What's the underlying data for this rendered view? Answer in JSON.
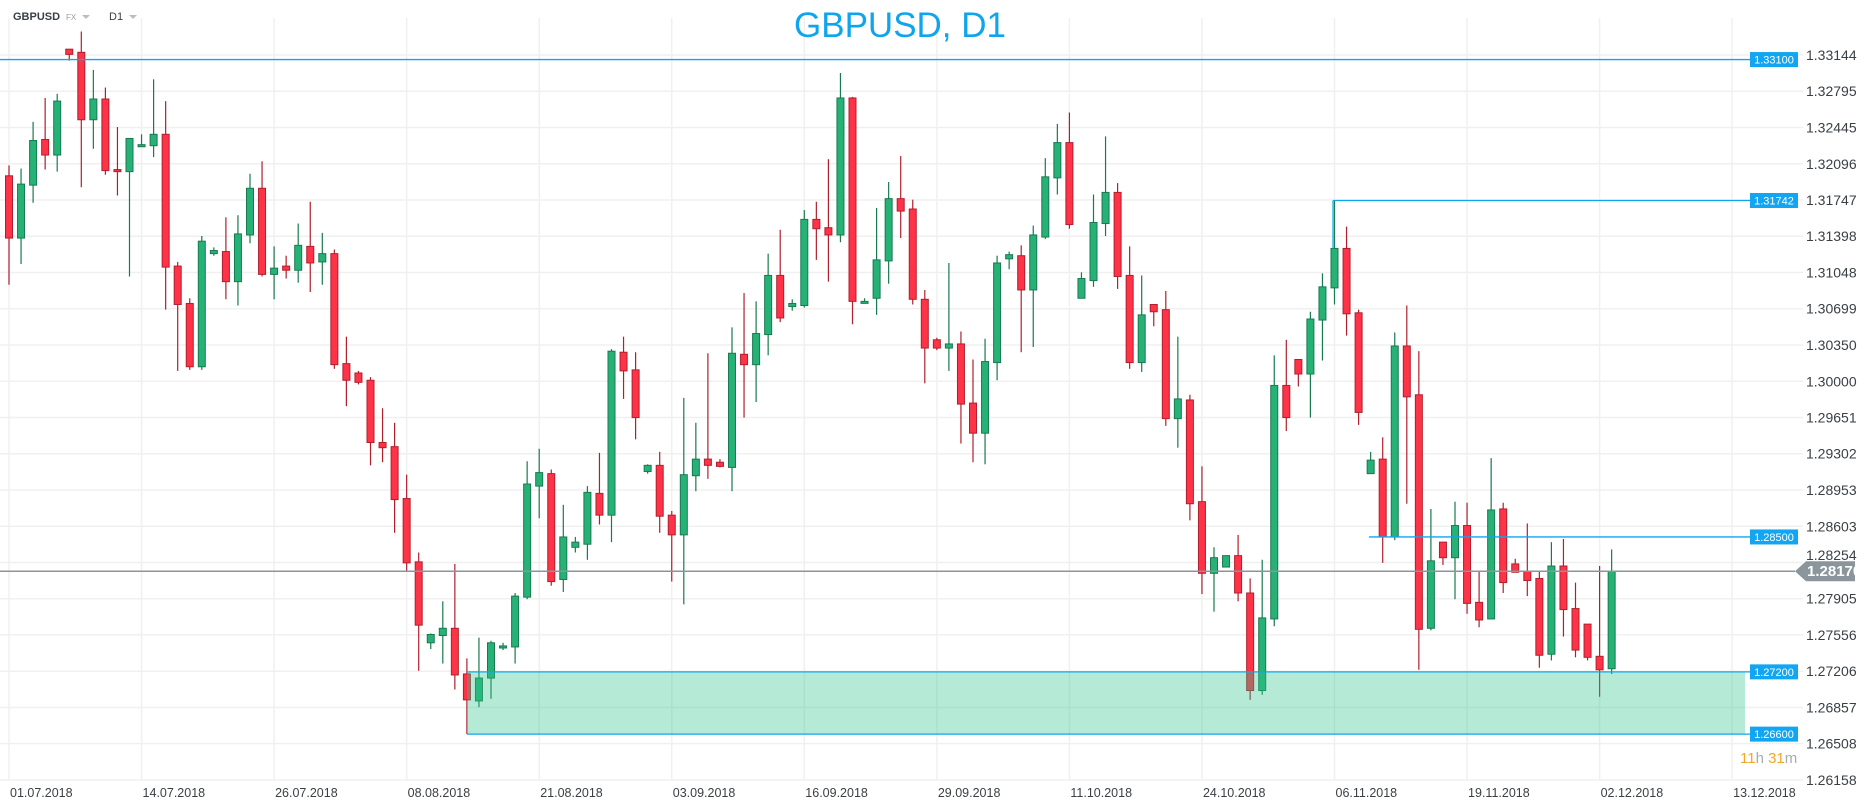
{
  "header": {
    "symbol": "GBPUSD",
    "market": "FX",
    "timeframe": "D1"
  },
  "countdown": {
    "hours": "11",
    "hours_unit": "h",
    "minutes": "31",
    "minutes_unit": "m"
  },
  "colors": {
    "up": "#26b276",
    "up_border": "#187a50",
    "down": "#ff3347",
    "down_border": "#b11f2d",
    "level": "#0ea5ee",
    "zone": "#b4ead8",
    "current": "#8a969c",
    "grid": "#f0f0f0"
  },
  "chart_data": {
    "type": "candlestick",
    "title": "GBPUSD, D1",
    "ylim": [
      1.26158,
      1.33144
    ],
    "grid": true,
    "price_ticks": [
      "1.33144",
      "1.32795",
      "1.32445",
      "1.32096",
      "1.31747",
      "1.31398",
      "1.31048",
      "1.30699",
      "1.30350",
      "1.30000",
      "1.29651",
      "1.29302",
      "1.28953",
      "1.28603",
      "1.28254",
      "1.27905",
      "1.27556",
      "1.27206",
      "1.26857",
      "1.26508",
      "1.26158"
    ],
    "date_ticks": [
      "01.07.2018",
      "14.07.2018",
      "26.07.2018",
      "08.08.2018",
      "21.08.2018",
      "03.09.2018",
      "16.09.2018",
      "29.09.2018",
      "11.10.2018",
      "24.10.2018",
      "06.11.2018",
      "19.11.2018",
      "02.12.2018",
      "13.12.2018"
    ],
    "levels": [
      {
        "price": 1.331,
        "label": "1.33100"
      },
      {
        "price": 1.31742,
        "label": "1.31742"
      },
      {
        "price": 1.285,
        "label": "1.28500"
      },
      {
        "price": 1.272,
        "label": "1.27200"
      },
      {
        "price": 1.266,
        "label": "1.26600"
      }
    ],
    "zone": {
      "from": 1.266,
      "to": 1.272
    },
    "current_price": {
      "price": 1.2817,
      "label": "1.28170"
    },
    "candle_fields": [
      "open",
      "high",
      "low",
      "close"
    ],
    "candles": [
      [
        1.3198,
        1.3208,
        1.3093,
        1.3138
      ],
      [
        1.3138,
        1.3205,
        1.3113,
        1.319
      ],
      [
        1.3189,
        1.325,
        1.3172,
        1.3232
      ],
      [
        1.3233,
        1.3273,
        1.3204,
        1.3218
      ],
      [
        1.3218,
        1.3277,
        1.3202,
        1.327
      ],
      [
        1.332,
        1.332,
        1.3309,
        1.3315
      ],
      [
        1.3317,
        1.3337,
        1.3187,
        1.3252
      ],
      [
        1.3252,
        1.33,
        1.3224,
        1.3272
      ],
      [
        1.3272,
        1.3283,
        1.3199,
        1.3203
      ],
      [
        1.3204,
        1.3245,
        1.3179,
        1.3202
      ],
      [
        1.3202,
        1.3234,
        1.3101,
        1.3234
      ],
      [
        1.3226,
        1.3238,
        1.3226,
        1.3228
      ],
      [
        1.3227,
        1.3291,
        1.3216,
        1.3238
      ],
      [
        1.3238,
        1.327,
        1.3069,
        1.311
      ],
      [
        1.3111,
        1.3115,
        1.301,
        1.3074
      ],
      [
        1.3075,
        1.308,
        1.3011,
        1.3014
      ],
      [
        1.3014,
        1.314,
        1.3011,
        1.3135
      ],
      [
        1.3123,
        1.3129,
        1.3121,
        1.3126
      ],
      [
        1.3125,
        1.3158,
        1.3079,
        1.3096
      ],
      [
        1.3096,
        1.316,
        1.3073,
        1.3142
      ],
      [
        1.3141,
        1.32,
        1.3133,
        1.3186
      ],
      [
        1.3186,
        1.3212,
        1.3101,
        1.3103
      ],
      [
        1.3103,
        1.313,
        1.3079,
        1.3109
      ],
      [
        1.3111,
        1.3121,
        1.3099,
        1.3107
      ],
      [
        1.3107,
        1.3152,
        1.3095,
        1.3131
      ],
      [
        1.313,
        1.3173,
        1.3086,
        1.3114
      ],
      [
        1.3115,
        1.3143,
        1.3093,
        1.3123
      ],
      [
        1.3123,
        1.3127,
        1.3012,
        1.3016
      ],
      [
        1.3017,
        1.3043,
        1.2976,
        1.3001
      ],
      [
        1.3008,
        1.301,
        1.2997,
        1.2999
      ],
      [
        1.3001,
        1.3004,
        1.2919,
        1.2941
      ],
      [
        1.2941,
        1.2974,
        1.2922,
        1.2936
      ],
      [
        1.2937,
        1.296,
        1.2854,
        1.2886
      ],
      [
        1.2887,
        1.291,
        1.2817,
        1.2825
      ],
      [
        1.2826,
        1.2835,
        1.2721,
        1.2765
      ],
      [
        1.2748,
        1.2757,
        1.2742,
        1.2756
      ],
      [
        1.2755,
        1.2788,
        1.2728,
        1.2762
      ],
      [
        1.2762,
        1.2824,
        1.2703,
        1.2717
      ],
      [
        1.2718,
        1.2733,
        1.266,
        1.2693
      ],
      [
        1.2692,
        1.2753,
        1.2686,
        1.2714
      ],
      [
        1.2714,
        1.275,
        1.2694,
        1.2748
      ],
      [
        1.2743,
        1.2748,
        1.2741,
        1.2745
      ],
      [
        1.2744,
        1.2796,
        1.2728,
        1.2793
      ],
      [
        1.2792,
        1.2923,
        1.279,
        1.2901
      ],
      [
        1.2899,
        1.2935,
        1.2868,
        1.2912
      ],
      [
        1.2911,
        1.2915,
        1.2803,
        1.2807
      ],
      [
        1.2809,
        1.2881,
        1.2797,
        1.285
      ],
      [
        1.284,
        1.285,
        1.2835,
        1.2845
      ],
      [
        1.2843,
        1.2899,
        1.2828,
        1.2893
      ],
      [
        1.2892,
        1.2931,
        1.2862,
        1.2871
      ],
      [
        1.2871,
        1.3031,
        1.2845,
        1.3029
      ],
      [
        1.3028,
        1.3043,
        1.2983,
        1.301
      ],
      [
        1.3011,
        1.3028,
        1.2944,
        1.2965
      ],
      [
        1.2913,
        1.292,
        1.2911,
        1.2919
      ],
      [
        1.2919,
        1.2932,
        1.2854,
        1.287
      ],
      [
        1.2871,
        1.2875,
        1.2807,
        1.2852
      ],
      [
        1.2852,
        1.2984,
        1.2785,
        1.291
      ],
      [
        1.2909,
        1.296,
        1.2894,
        1.2925
      ],
      [
        1.2925,
        1.3027,
        1.2906,
        1.2919
      ],
      [
        1.2922,
        1.2925,
        1.2917,
        1.2918
      ],
      [
        1.2917,
        1.3052,
        1.2894,
        1.3027
      ],
      [
        1.3026,
        1.3085,
        1.2965,
        1.3016
      ],
      [
        1.3016,
        1.3077,
        1.298,
        1.3046
      ],
      [
        1.3045,
        1.3123,
        1.3025,
        1.3102
      ],
      [
        1.3102,
        1.3146,
        1.3057,
        1.3061
      ],
      [
        1.3072,
        1.3079,
        1.3068,
        1.3075
      ],
      [
        1.3073,
        1.3165,
        1.3071,
        1.3156
      ],
      [
        1.3156,
        1.3173,
        1.3117,
        1.3147
      ],
      [
        1.3148,
        1.3214,
        1.3096,
        1.3141
      ],
      [
        1.3141,
        1.3297,
        1.3134,
        1.3273
      ],
      [
        1.3273,
        1.3274,
        1.3055,
        1.3077
      ],
      [
        1.3076,
        1.308,
        1.3075,
        1.3077
      ],
      [
        1.308,
        1.3167,
        1.3064,
        1.3117
      ],
      [
        1.3116,
        1.3192,
        1.3094,
        1.3176
      ],
      [
        1.3176,
        1.3217,
        1.3138,
        1.3164
      ],
      [
        1.3166,
        1.3175,
        1.3074,
        1.3079
      ],
      [
        1.3079,
        1.3088,
        1.2998,
        1.3032
      ],
      [
        1.304,
        1.3042,
        1.303,
        1.3032
      ],
      [
        1.3032,
        1.3114,
        1.301,
        1.3036
      ],
      [
        1.3036,
        1.3048,
        1.294,
        1.2978
      ],
      [
        1.2979,
        1.3021,
        1.2922,
        1.295
      ],
      [
        1.295,
        1.3041,
        1.292,
        1.3019
      ],
      [
        1.3018,
        1.3121,
        1.3001,
        1.3114
      ],
      [
        1.3118,
        1.3125,
        1.3108,
        1.3122
      ],
      [
        1.3121,
        1.3131,
        1.3028,
        1.3088
      ],
      [
        1.3088,
        1.315,
        1.3033,
        1.3141
      ],
      [
        1.3139,
        1.3215,
        1.3137,
        1.3197
      ],
      [
        1.3196,
        1.3248,
        1.318,
        1.323
      ],
      [
        1.323,
        1.3259,
        1.3147,
        1.3151
      ],
      [
        1.308,
        1.3105,
        1.308,
        1.3099
      ],
      [
        1.3097,
        1.318,
        1.3091,
        1.3153
      ],
      [
        1.3152,
        1.3236,
        1.314,
        1.3182
      ],
      [
        1.3182,
        1.3191,
        1.3089,
        1.3101
      ],
      [
        1.3102,
        1.313,
        1.3012,
        1.3018
      ],
      [
        1.3018,
        1.3102,
        1.3009,
        1.3064
      ],
      [
        1.3074,
        1.3074,
        1.3053,
        1.3067
      ],
      [
        1.3069,
        1.3087,
        1.2957,
        1.2964
      ],
      [
        1.2964,
        1.3043,
        1.2936,
        1.2983
      ],
      [
        1.2982,
        1.2987,
        1.2866,
        1.2882
      ],
      [
        1.2884,
        1.2918,
        1.2795,
        1.2815
      ],
      [
        1.2815,
        1.284,
        1.2778,
        1.283
      ],
      [
        1.2821,
        1.2832,
        1.2821,
        1.2832
      ],
      [
        1.2832,
        1.2852,
        1.2788,
        1.2796
      ],
      [
        1.2796,
        1.281,
        1.2693,
        1.2702
      ],
      [
        1.2702,
        1.2828,
        1.2698,
        1.2772
      ],
      [
        1.2771,
        1.3025,
        1.2764,
        1.2996
      ],
      [
        1.2996,
        1.304,
        1.2952,
        1.2965
      ],
      [
        1.3021,
        1.3021,
        1.2995,
        1.3007
      ],
      [
        1.3007,
        1.3067,
        1.2965,
        1.306
      ],
      [
        1.3059,
        1.3104,
        1.302,
        1.3091
      ],
      [
        1.309,
        1.31742,
        1.3074,
        1.3128
      ],
      [
        1.3128,
        1.3149,
        1.3044,
        1.3065
      ],
      [
        1.3066,
        1.3069,
        1.2958,
        1.297
      ],
      [
        1.2911,
        1.2932,
        1.2911,
        1.2924
      ],
      [
        1.2925,
        1.2946,
        1.2825,
        1.285
      ],
      [
        1.285,
        1.3047,
        1.2847,
        1.3034
      ],
      [
        1.3034,
        1.3073,
        1.2882,
        1.2985
      ],
      [
        1.2987,
        1.3029,
        1.2722,
        1.2761
      ],
      [
        1.2762,
        1.2877,
        1.276,
        1.2827
      ],
      [
        1.2845,
        1.2845,
        1.2823,
        1.283
      ],
      [
        1.283,
        1.2884,
        1.279,
        1.2861
      ],
      [
        1.2861,
        1.2883,
        1.2776,
        1.2786
      ],
      [
        1.2787,
        1.2817,
        1.2763,
        1.277
      ],
      [
        1.2771,
        1.2926,
        1.2771,
        1.2876
      ],
      [
        1.2877,
        1.2883,
        1.2796,
        1.2806
      ],
      [
        1.2824,
        1.2829,
        1.2816,
        1.2816
      ],
      [
        1.2817,
        1.2863,
        1.2793,
        1.2808
      ],
      [
        1.281,
        1.2817,
        1.2724,
        1.2736
      ],
      [
        1.2737,
        1.2845,
        1.2731,
        1.2822
      ],
      [
        1.2822,
        1.2848,
        1.2754,
        1.278
      ],
      [
        1.2781,
        1.2806,
        1.2734,
        1.2741
      ],
      [
        1.2766,
        1.2766,
        1.2731,
        1.2734
      ],
      [
        1.2735,
        1.2822,
        1.2696,
        1.2722
      ],
      [
        1.2723,
        1.2838,
        1.2718,
        1.2817
      ]
    ]
  }
}
